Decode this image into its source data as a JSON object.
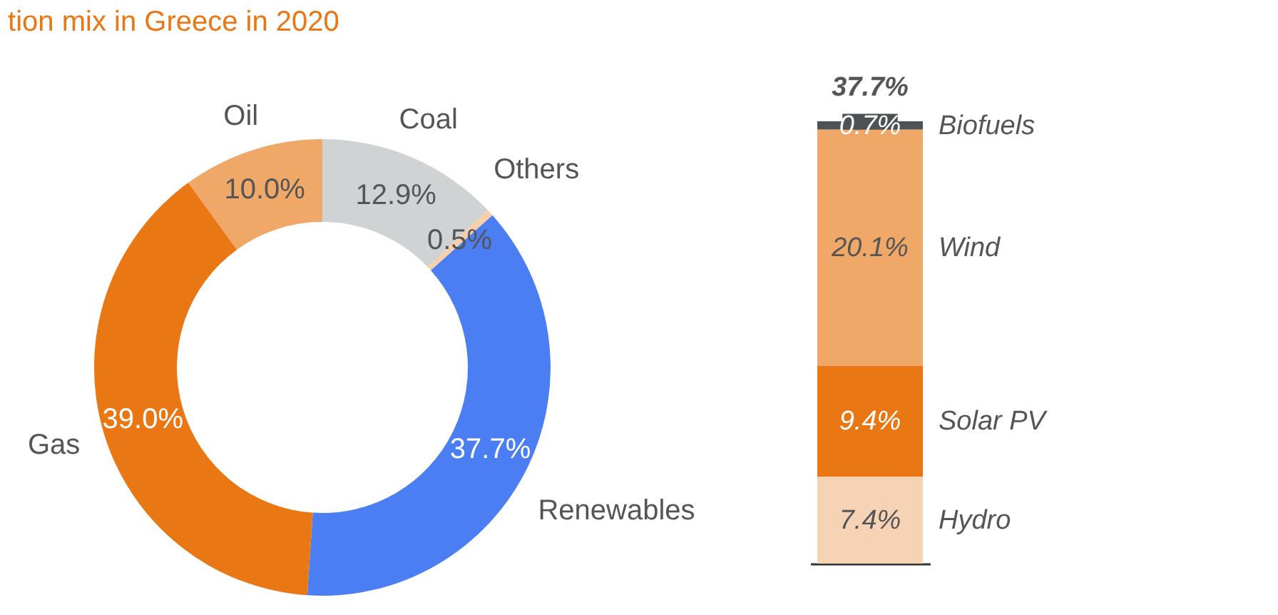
{
  "chart_data": [
    {
      "type": "donut",
      "title": "tion mix in Greece in 2020",
      "categories": [
        "Coal",
        "Others",
        "Renewables",
        "Gas",
        "Oil"
      ],
      "values": [
        12.9,
        0.5,
        37.7,
        39.0,
        10.0
      ],
      "colors": [
        "#d0d3d4",
        "#f6cfab",
        "#4a7ef2",
        "#e87714",
        "#f0a868"
      ],
      "value_labels": [
        "12.9%",
        "0.5%",
        "37.7%",
        "39.0%",
        "10.0%"
      ]
    },
    {
      "type": "bar",
      "stacked": true,
      "categories": [
        null
      ],
      "tick_labels": false,
      "series": [
        {
          "name": "Hydro",
          "color": "#f6d3b5",
          "values": [
            7.4
          ],
          "value_labels": [
            "7.4%"
          ]
        },
        {
          "name": "Solar PV",
          "color": "#e87714",
          "values": [
            9.4
          ],
          "value_labels": [
            "9.4%"
          ]
        },
        {
          "name": "Wind",
          "color": "#f0a868",
          "values": [
            20.1
          ],
          "value_labels": [
            "20.1%"
          ]
        },
        {
          "name": "Biofuels",
          "color": "#4d5354",
          "values": [
            0.7
          ],
          "value_labels": [
            "0.7%"
          ]
        }
      ],
      "totals": [
        "37.7%"
      ]
    }
  ]
}
